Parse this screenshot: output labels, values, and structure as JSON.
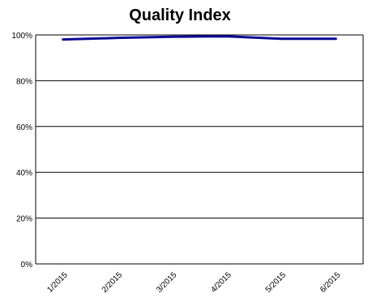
{
  "chart_data": {
    "type": "line",
    "title": "Quality Index",
    "xlabel": "",
    "ylabel": "",
    "categories": [
      "1/2015",
      "2/2015",
      "3/2015",
      "4/2015",
      "5/2015",
      "6/2015"
    ],
    "series": [
      {
        "values": [
          98,
          98.7,
          99.2,
          99.4,
          98.3,
          98.3
        ]
      }
    ],
    "y_ticks": [
      "0%",
      "20%",
      "40%",
      "60%",
      "80%",
      "100%"
    ],
    "ylim": [
      0,
      100
    ],
    "grid": true,
    "legend": "none",
    "colors": {
      "line": "#0a0a96",
      "grid": "#000000",
      "axis": "#000000"
    }
  }
}
